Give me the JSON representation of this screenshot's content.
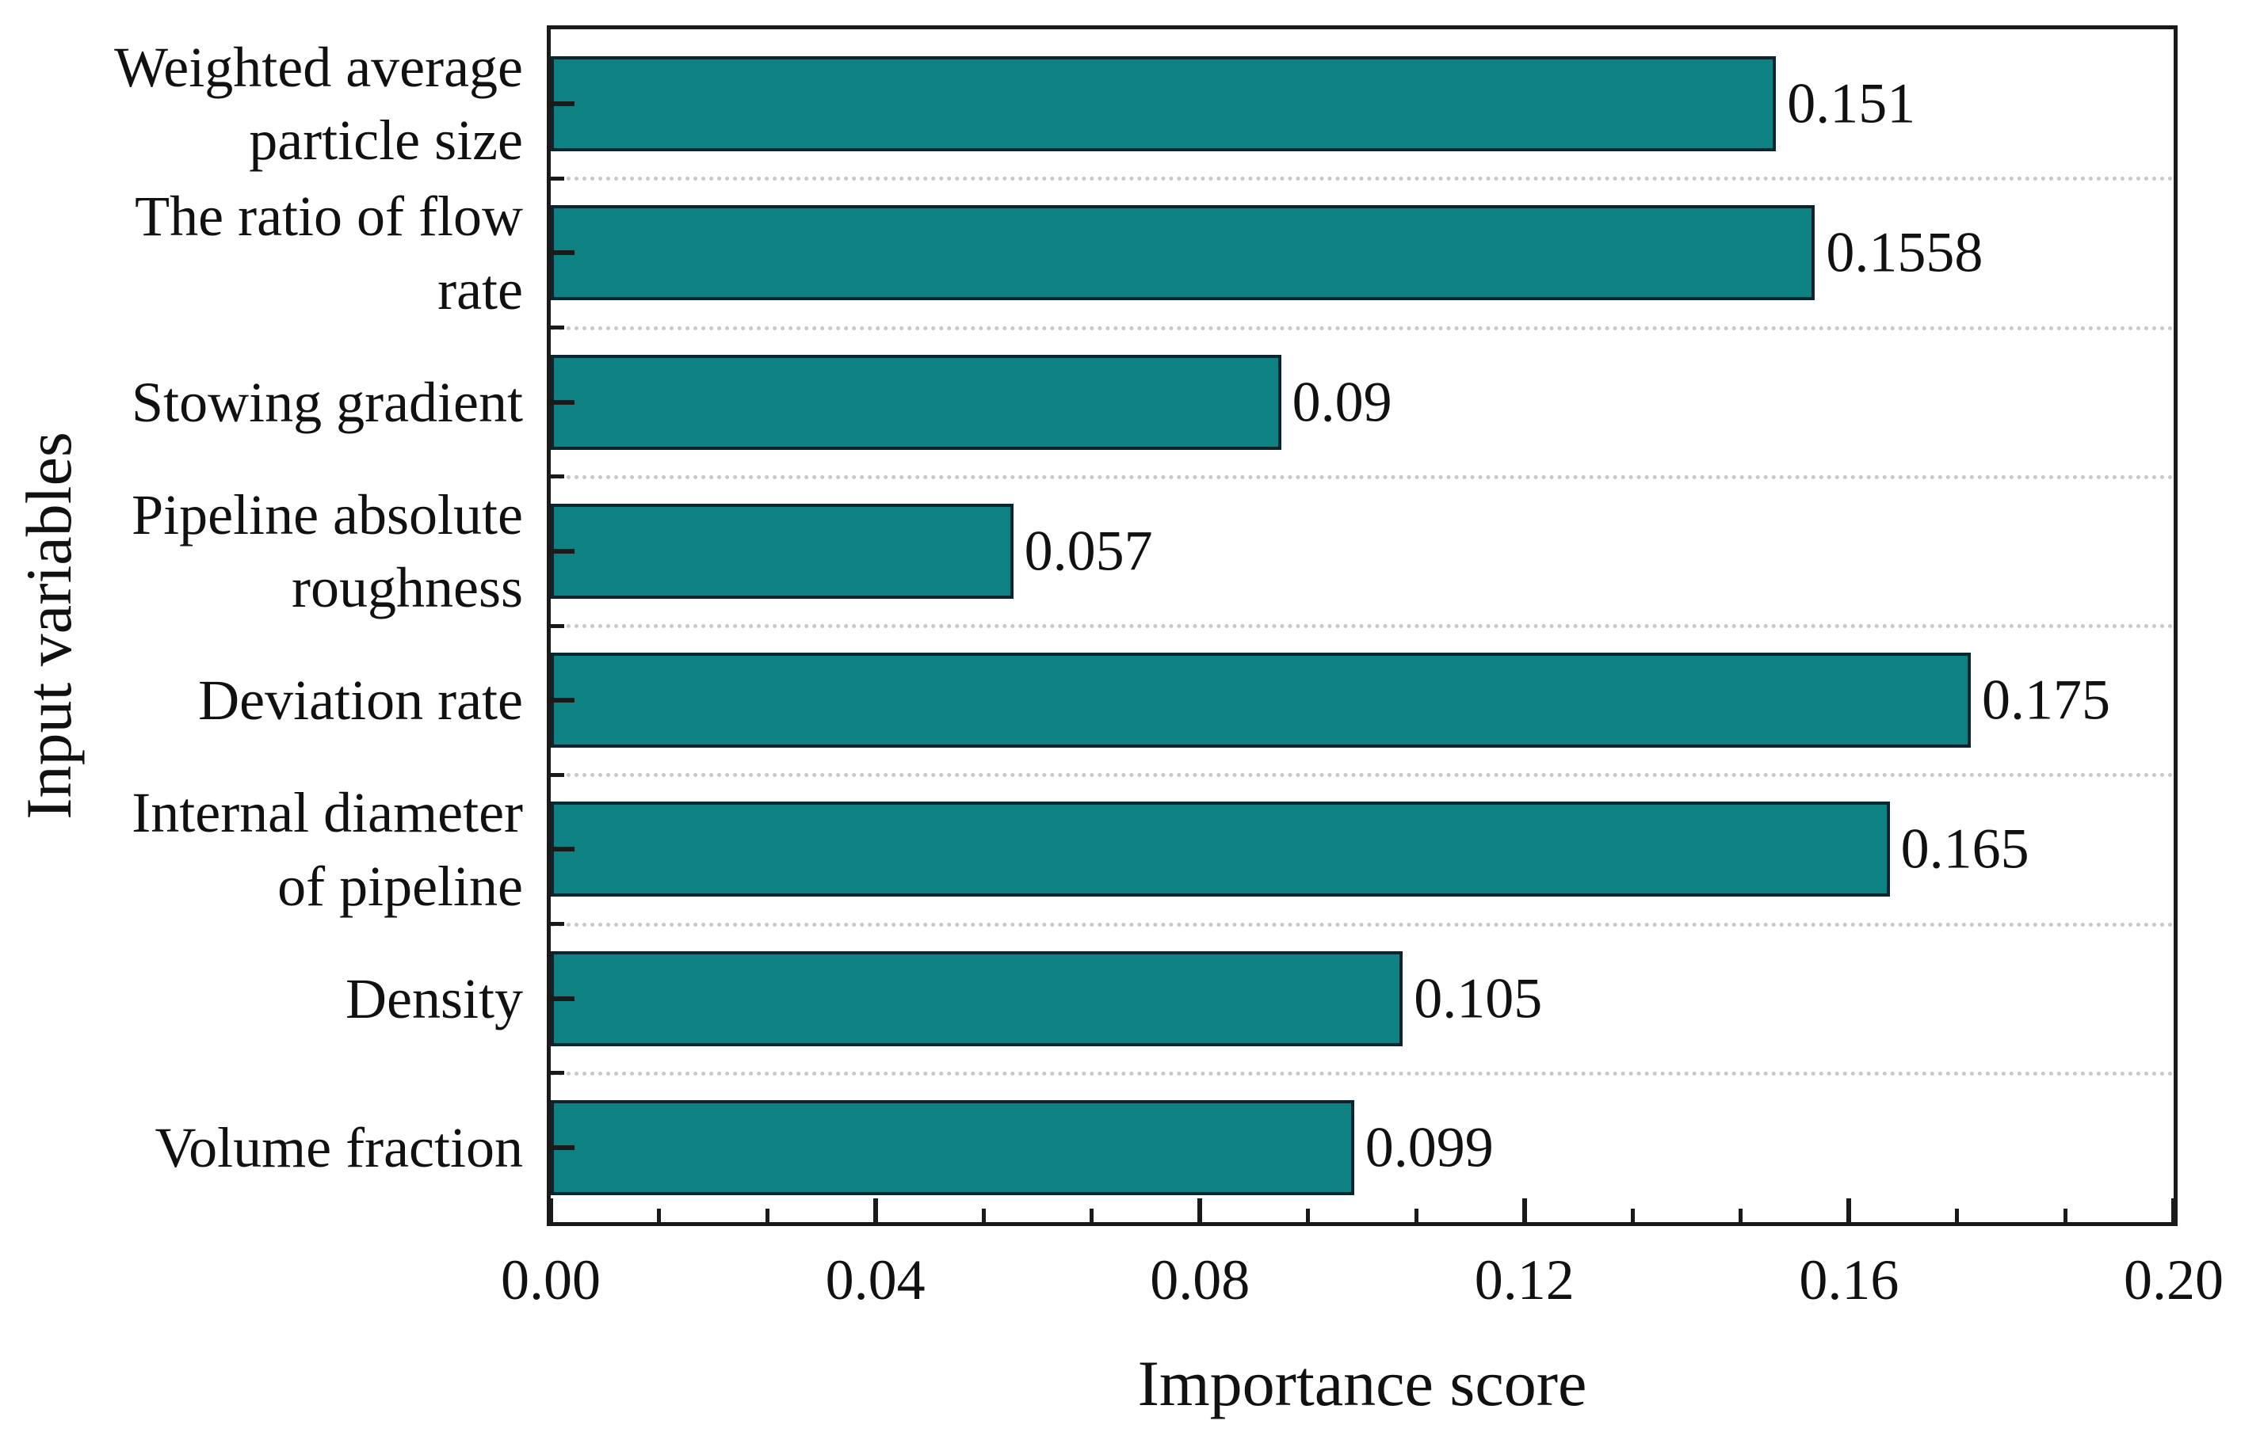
{
  "chart_data": {
    "type": "bar",
    "orientation": "horizontal",
    "title": "",
    "xlabel": "Importance score",
    "ylabel": "Input variables",
    "xlim": [
      0,
      0.2
    ],
    "x_tick_labels": [
      "0.00",
      "0.04",
      "0.08",
      "0.12",
      "0.16",
      "0.20"
    ],
    "x_minor_ticks_per_interval": 2,
    "grid": {
      "between_categories": true,
      "style": "dotted",
      "color": "#c8c8c8"
    },
    "legend_position": "none",
    "categories": [
      "Weighted average particle size",
      "The ratio of flow rate",
      "Stowing gradient",
      "Pipeline absolute roughness",
      "Deviation rate",
      "Internal diameter of pipeline",
      "Density",
      "Volume fraction"
    ],
    "category_label_lines": [
      [
        "Weighted average",
        "particle size"
      ],
      [
        "The ratio of flow",
        "rate"
      ],
      [
        "Stowing gradient"
      ],
      [
        "Pipeline absolute",
        "roughness"
      ],
      [
        "Deviation rate"
      ],
      [
        "Internal diameter",
        "of pipeline"
      ],
      [
        "Density"
      ],
      [
        "Volume fraction"
      ]
    ],
    "values": [
      0.151,
      0.1558,
      0.09,
      0.057,
      0.175,
      0.165,
      0.105,
      0.099
    ],
    "value_labels": [
      "0.151",
      "0.1558",
      "0.09",
      "0.057",
      "0.175",
      "0.165",
      "0.105",
      "0.099"
    ],
    "colors": {
      "bar_fill": "#0e8182",
      "bar_edge": "#0b2530",
      "axis": "#1a1a1a",
      "grid": "#c8c8c8",
      "text": "#111111"
    }
  }
}
